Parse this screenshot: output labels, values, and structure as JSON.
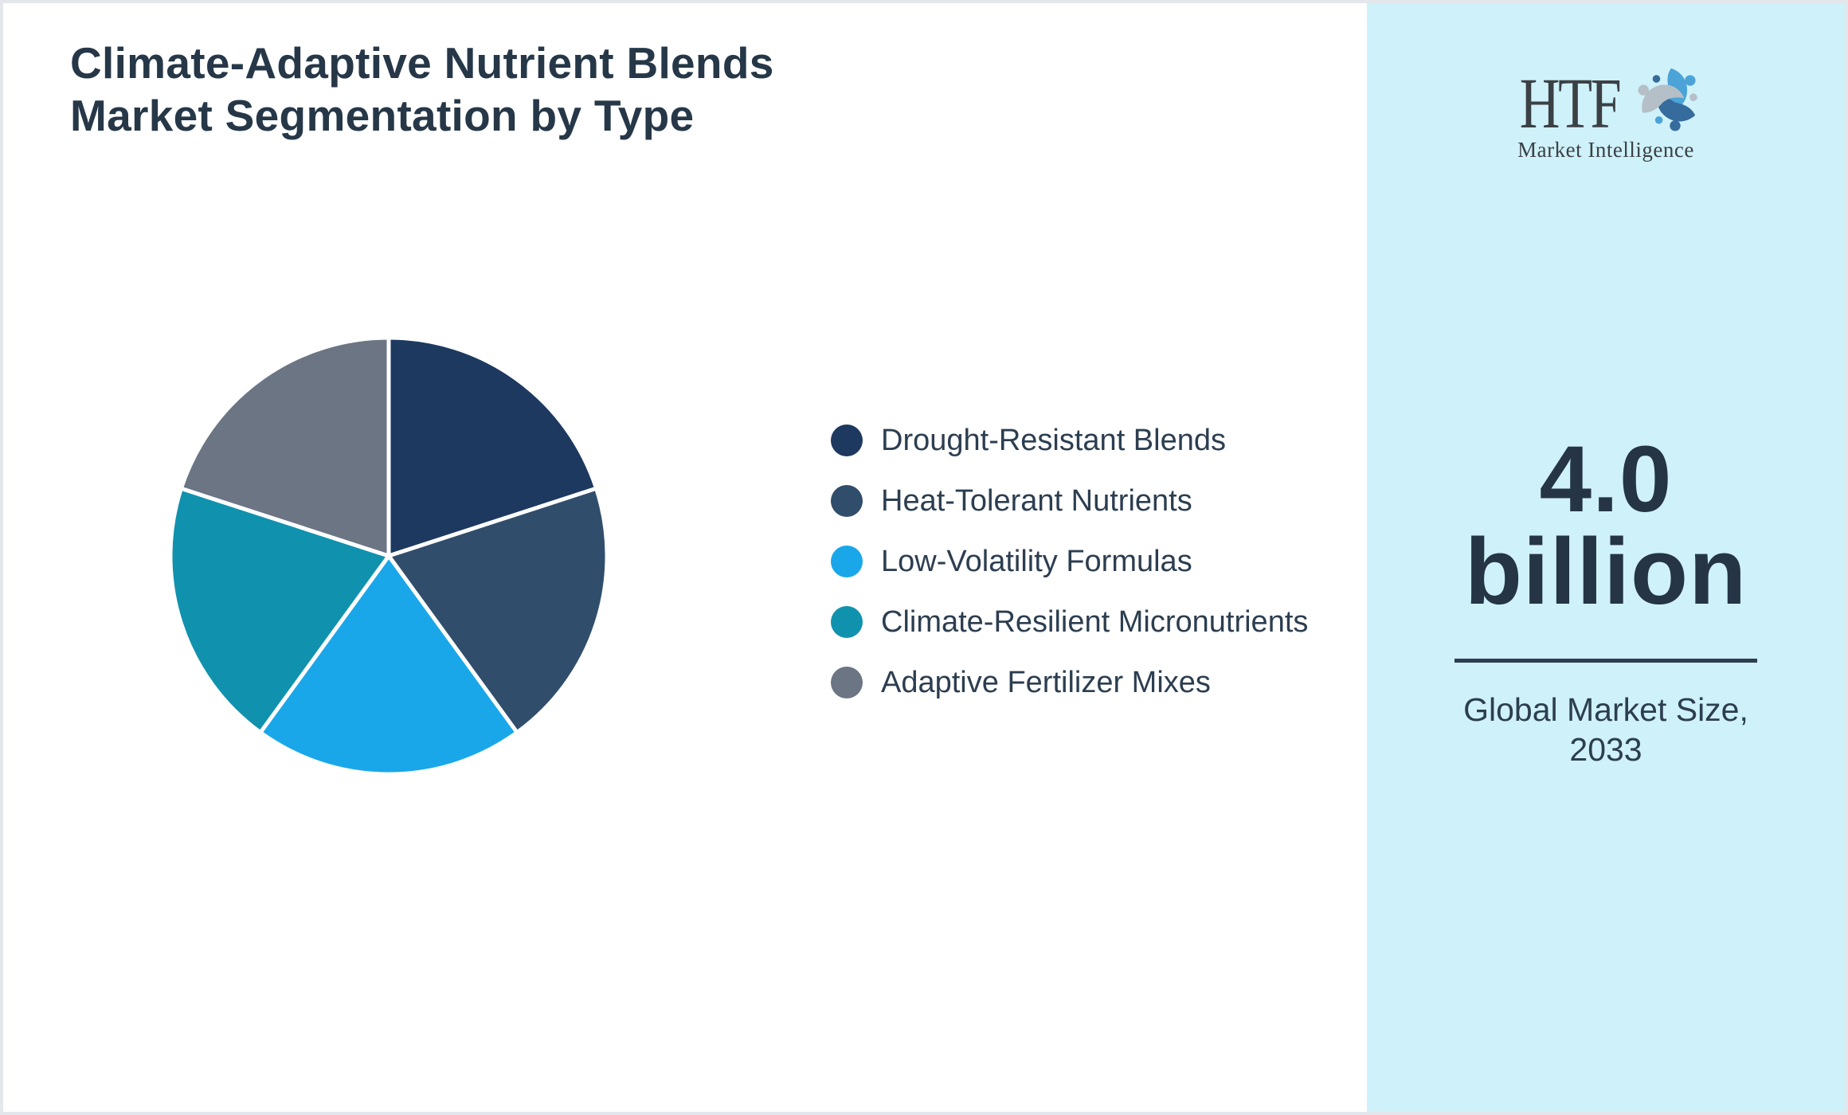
{
  "header": {
    "title_line1": "Climate-Adaptive Nutrient Blends",
    "title_line2": "Market Segmentation by Type"
  },
  "chart_data": {
    "type": "pie",
    "title": "Climate-Adaptive Nutrient Blends Market Segmentation by Type",
    "labels": [
      "Drought-Resistant Blends",
      "Heat-Tolerant Nutrients",
      "Low-Volatility Formulas",
      "Climate-Resilient Micronutrients",
      "Adaptive Fertilizer Mixes"
    ],
    "values": [
      20,
      20,
      20,
      20,
      20
    ],
    "unit": "percent-share (equal slices, no data labels shown)",
    "colors": [
      "#1d395f",
      "#304e6b",
      "#19a7ea",
      "#1092ae",
      "#6b7584"
    ],
    "start_angle_deg": 0,
    "direction": "clockwise",
    "legend_position": "right",
    "slice_border_color": "#ffffff"
  },
  "sidebar": {
    "logo": {
      "acronym": "HTF",
      "subtitle": "Market Intelligence",
      "icon": "htf-swirl-logo",
      "swirl_colors": [
        "#4ba3d8",
        "#366b9d",
        "#b4bfc7"
      ]
    },
    "market_size_value_line1": "4.0",
    "market_size_value_line2": "billion",
    "caption_line1": "Global Market Size,",
    "caption_line2": "2033",
    "background": "#cff1f9"
  },
  "theme": {
    "title_color": "#263748",
    "text_color": "#2c3e50",
    "page_border": "#e3e6ea",
    "main_background": "#ffffff"
  }
}
